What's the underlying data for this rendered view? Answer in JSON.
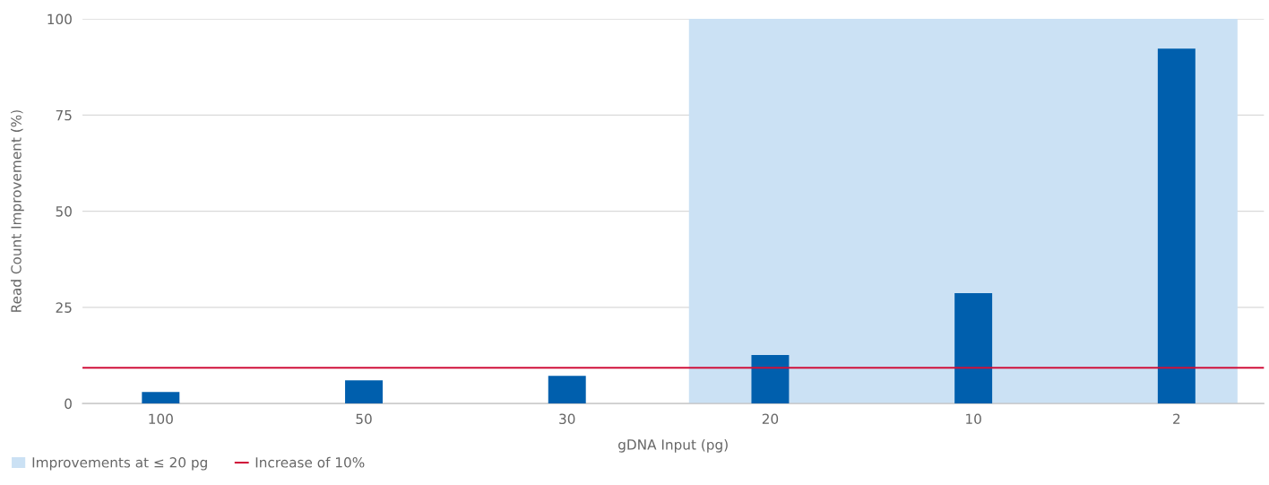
{
  "chart_data": {
    "type": "bar",
    "xlabel": "gDNA Input (pg)",
    "ylabel": "Read Count Improvement (%)",
    "categories": [
      "100",
      "50",
      "30",
      "20",
      "10",
      "2"
    ],
    "values": [
      3.0,
      6.0,
      7.2,
      12.6,
      28.7,
      92.3
    ],
    "color": "#005fad",
    "ylim": [
      0,
      100
    ],
    "yticks": [
      0,
      25,
      50,
      75,
      100
    ],
    "grid": "y",
    "legend": "bottom left",
    "ref_lines": [
      {
        "axis": "y",
        "value": 9.3,
        "label": "Increase of 10%",
        "color": "#d0103a",
        "line_style": "solid"
      }
    ],
    "bands": [
      {
        "axis": "x",
        "from": "20",
        "to": "2",
        "label": "Improvements at ≤ 20 pg",
        "color": "#cbe1f4"
      }
    ]
  }
}
